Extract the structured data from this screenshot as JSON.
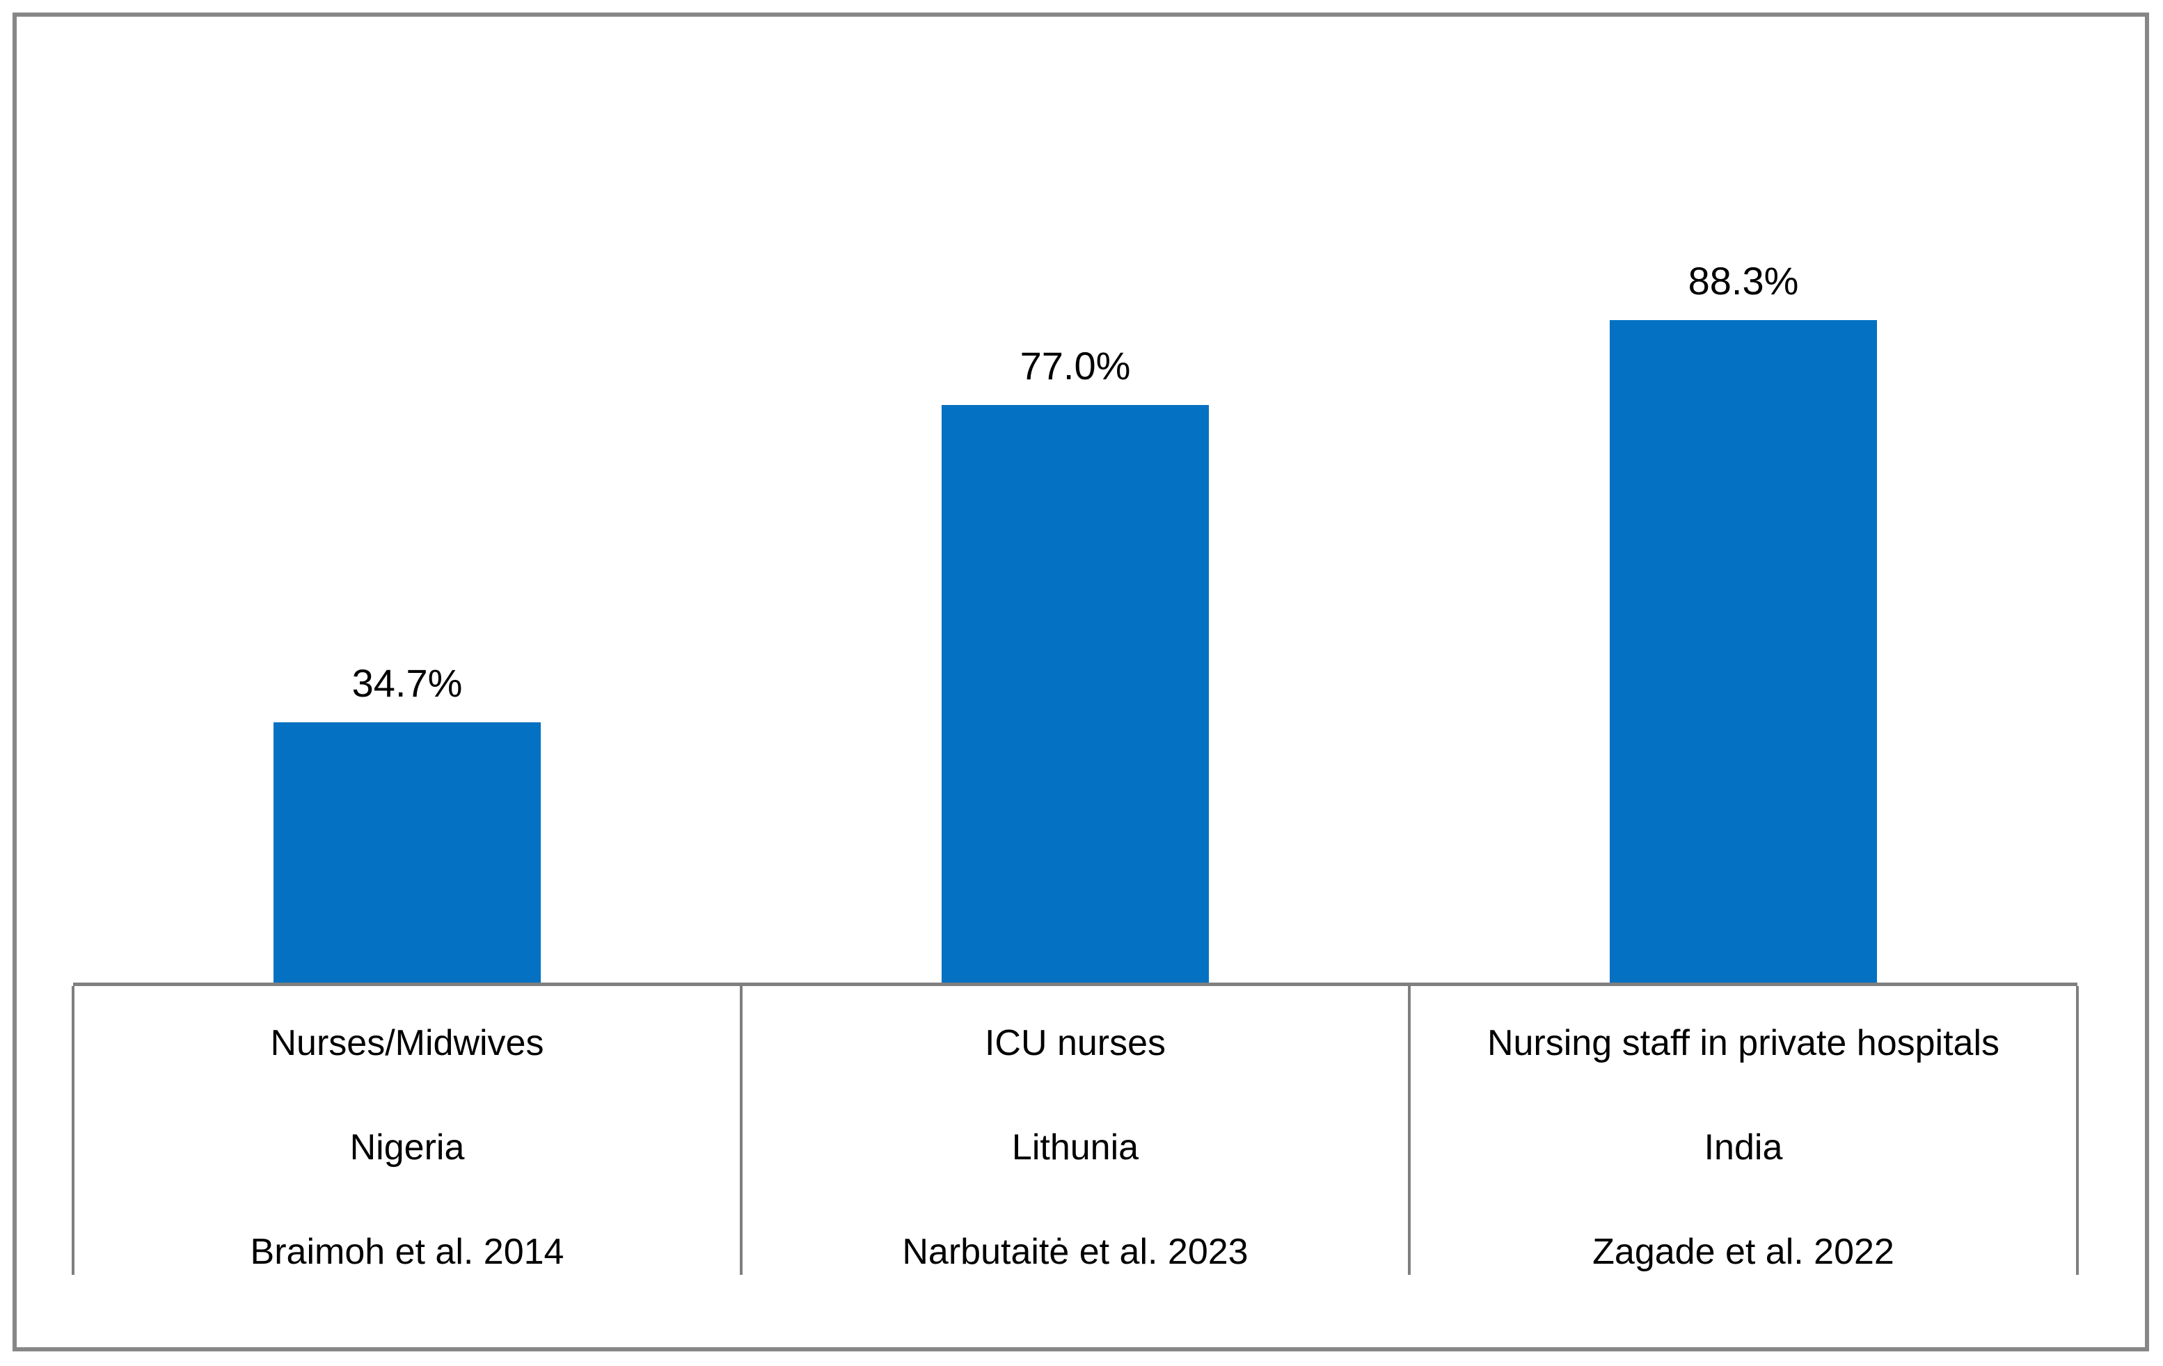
{
  "chart_data": {
    "type": "bar",
    "title": "",
    "xlabel": "",
    "ylabel": "",
    "unit": "%",
    "ylim": [
      0,
      100
    ],
    "grid": false,
    "legend": false,
    "values": [
      34.7,
      77.0,
      88.3
    ],
    "value_labels": [
      "34.7%",
      "77.0%",
      "88.3%"
    ],
    "categories": [
      {
        "population": "Nurses/Midwives",
        "country": "Nigeria",
        "source": "Braimoh et al. 2014"
      },
      {
        "population": "ICU nurses",
        "country": "Lithunia",
        "source": "Narbutaitė et al. 2023"
      },
      {
        "population": "Nursing staff in private hospitals",
        "country": "India",
        "source": "Zagade et al. 2022"
      }
    ],
    "colors": {
      "bar_fill": "#0571c2",
      "axis_line": "#7f7f7f",
      "figure_border": "#878787",
      "text": "#000000"
    }
  }
}
